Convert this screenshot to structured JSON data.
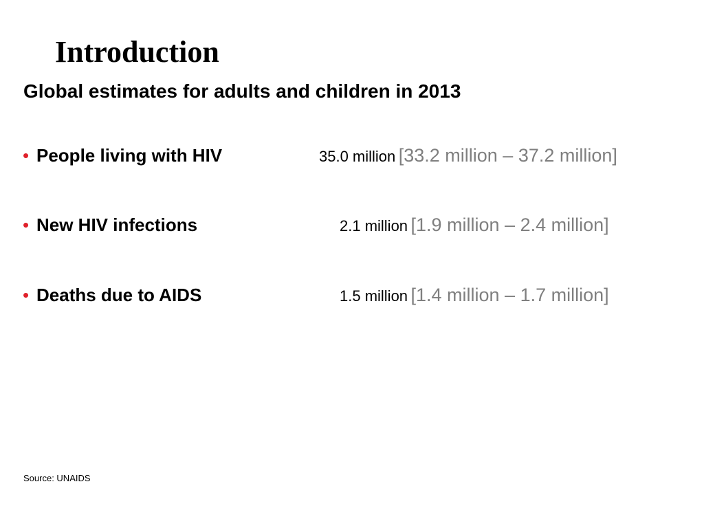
{
  "slide": {
    "title": "Introduction",
    "subtitle": "Global estimates for adults and children in 2013",
    "items": [
      {
        "label": "People living with HIV",
        "value": "35.0 million",
        "range": "[33.2 million – 37.2 million]"
      },
      {
        "label": "New HIV infections",
        "value": "2.1 million",
        "range": "[1.9 million – 2.4 million]"
      },
      {
        "label": "Deaths due to AIDS",
        "value": "1.5 million",
        "range": "[1.4 million – 1.7 million]"
      }
    ],
    "source": "Source: UNAIDS"
  },
  "colors": {
    "bullet": "#e0212b",
    "range_text": "#7f7f7f",
    "text": "#000000"
  }
}
